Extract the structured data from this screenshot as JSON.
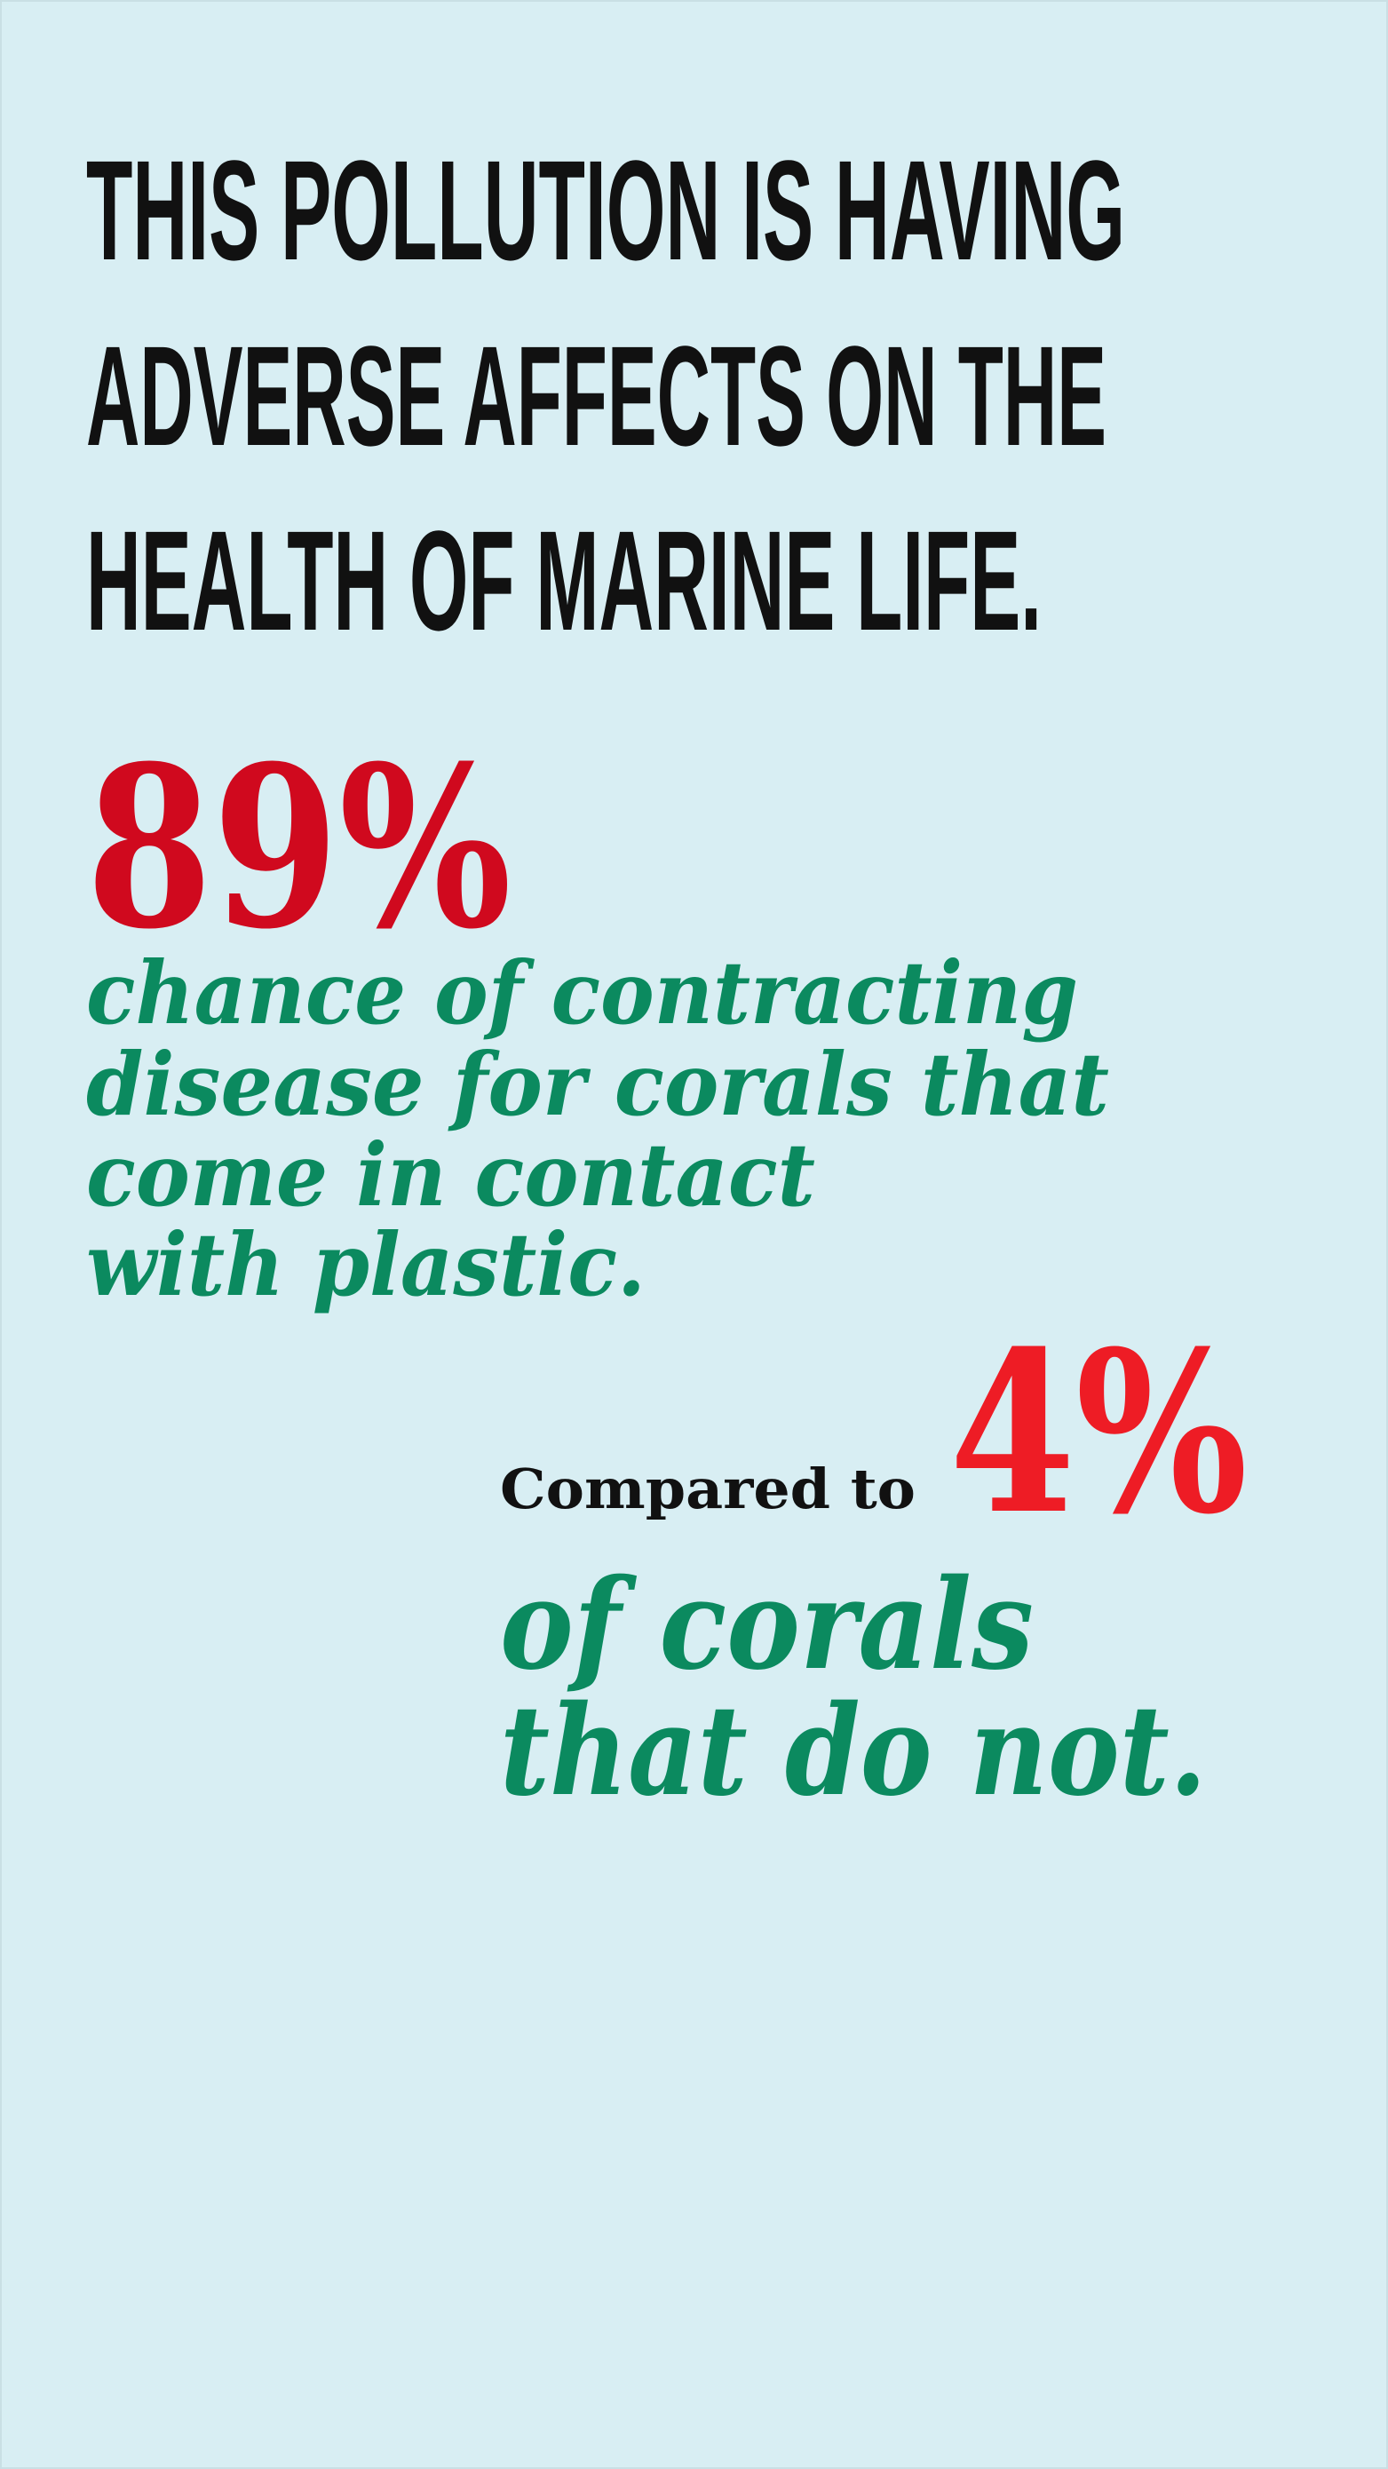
{
  "headline": [
    "THIS POLLUTION IS HAVING",
    "ADVERSE AFFECTS ON THE",
    "HEALTH OF MARINE LIFE."
  ],
  "stat1": {
    "figure": "89%",
    "caption": [
      "chance of contracting",
      "disease for corals that",
      "come in contact",
      "with plastic."
    ]
  },
  "stat2": {
    "lead": "Compared to",
    "figure": "4%",
    "caption": [
      "of corals",
      "that do not."
    ]
  }
}
